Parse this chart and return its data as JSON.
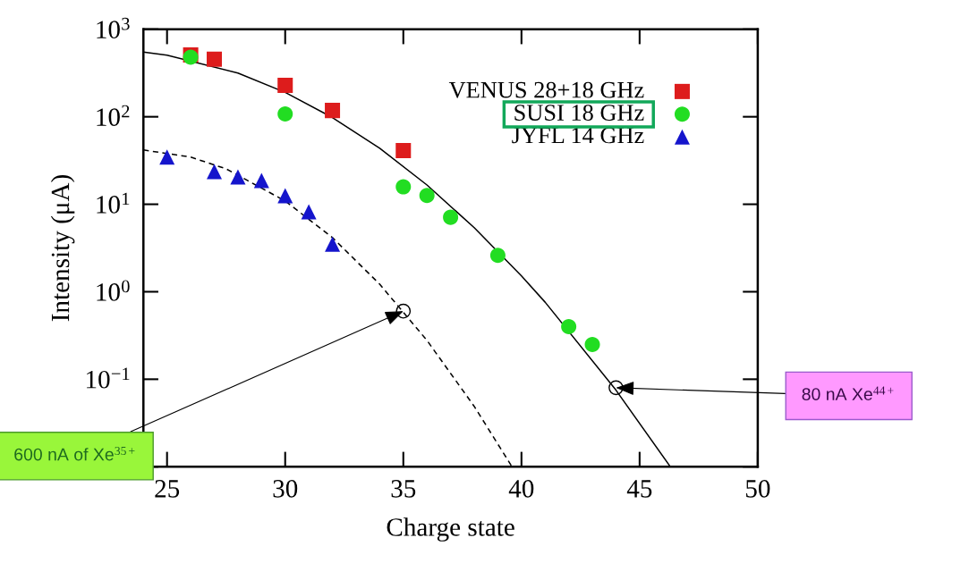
{
  "chart_data": {
    "type": "scatter",
    "xlabel": "Charge state",
    "ylabel": "Intensity (μA)",
    "log": "y",
    "xlim": [
      24,
      50
    ],
    "ylim": [
      0.01,
      1000
    ],
    "xticks": [
      25,
      30,
      35,
      40,
      45,
      50
    ],
    "yticks": [
      {
        "value": 0.01,
        "label": null
      },
      {
        "value": 0.1,
        "label": "10$^{−1}$"
      },
      {
        "value": 1,
        "label": "10$^{0}$"
      },
      {
        "value": 10,
        "label": "10$^{1}$"
      },
      {
        "value": 100,
        "label": "10$^{2}$"
      },
      {
        "value": 1000,
        "label": "10$^{3}$"
      }
    ],
    "legend": "top right",
    "grid": false,
    "series": [
      {
        "name": "VENUS 28+18 GHz",
        "color": "#dd1c1c",
        "marker": "square",
        "x": [
          26,
          27,
          30,
          32,
          35
        ],
        "values": [
          510,
          455,
          229,
          118,
          41
        ]
      },
      {
        "name": "SUSI 18 GHz",
        "color": "#22dd22",
        "marker": "circle",
        "x": [
          26,
          30,
          35,
          36,
          37,
          39,
          42,
          43
        ],
        "values": [
          480,
          108,
          15.8,
          12.6,
          7.1,
          2.6,
          0.4,
          0.25
        ]
      },
      {
        "name": "JYFL 14 GHz",
        "color": "#1515cc",
        "marker": "triangle",
        "x": [
          25,
          27,
          28,
          29,
          30,
          31,
          32
        ],
        "values": [
          34.6,
          23.6,
          20.5,
          18.7,
          12.5,
          8.2,
          3.5
        ]
      },
      {
        "type": "line",
        "color": "#000000",
        "line_style": "solid",
        "x": [
          24,
          25,
          28,
          30,
          32,
          34,
          36,
          38,
          40,
          41,
          44,
          46.3
        ],
        "values": [
          548,
          506,
          316,
          190,
          98,
          43.6,
          16.6,
          5.4,
          1.52,
          0.76,
          0.075,
          0.01
        ]
      },
      {
        "type": "line",
        "color": "#000000",
        "line_style": "dashed",
        "x": [
          24,
          26,
          27.5,
          30,
          32,
          34,
          36,
          38,
          39.6
        ],
        "values": [
          41.7,
          34.6,
          25.4,
          10.9,
          4.16,
          1.22,
          0.278,
          0.049,
          0.01
        ]
      }
    ],
    "annotations": [
      {
        "text": "600 nA of Xe$^{35+}$",
        "x": 35,
        "y": 0.6
      },
      {
        "text": "80 nA Xe$^{44+}$",
        "x": 44,
        "y": 0.08
      }
    ]
  }
}
